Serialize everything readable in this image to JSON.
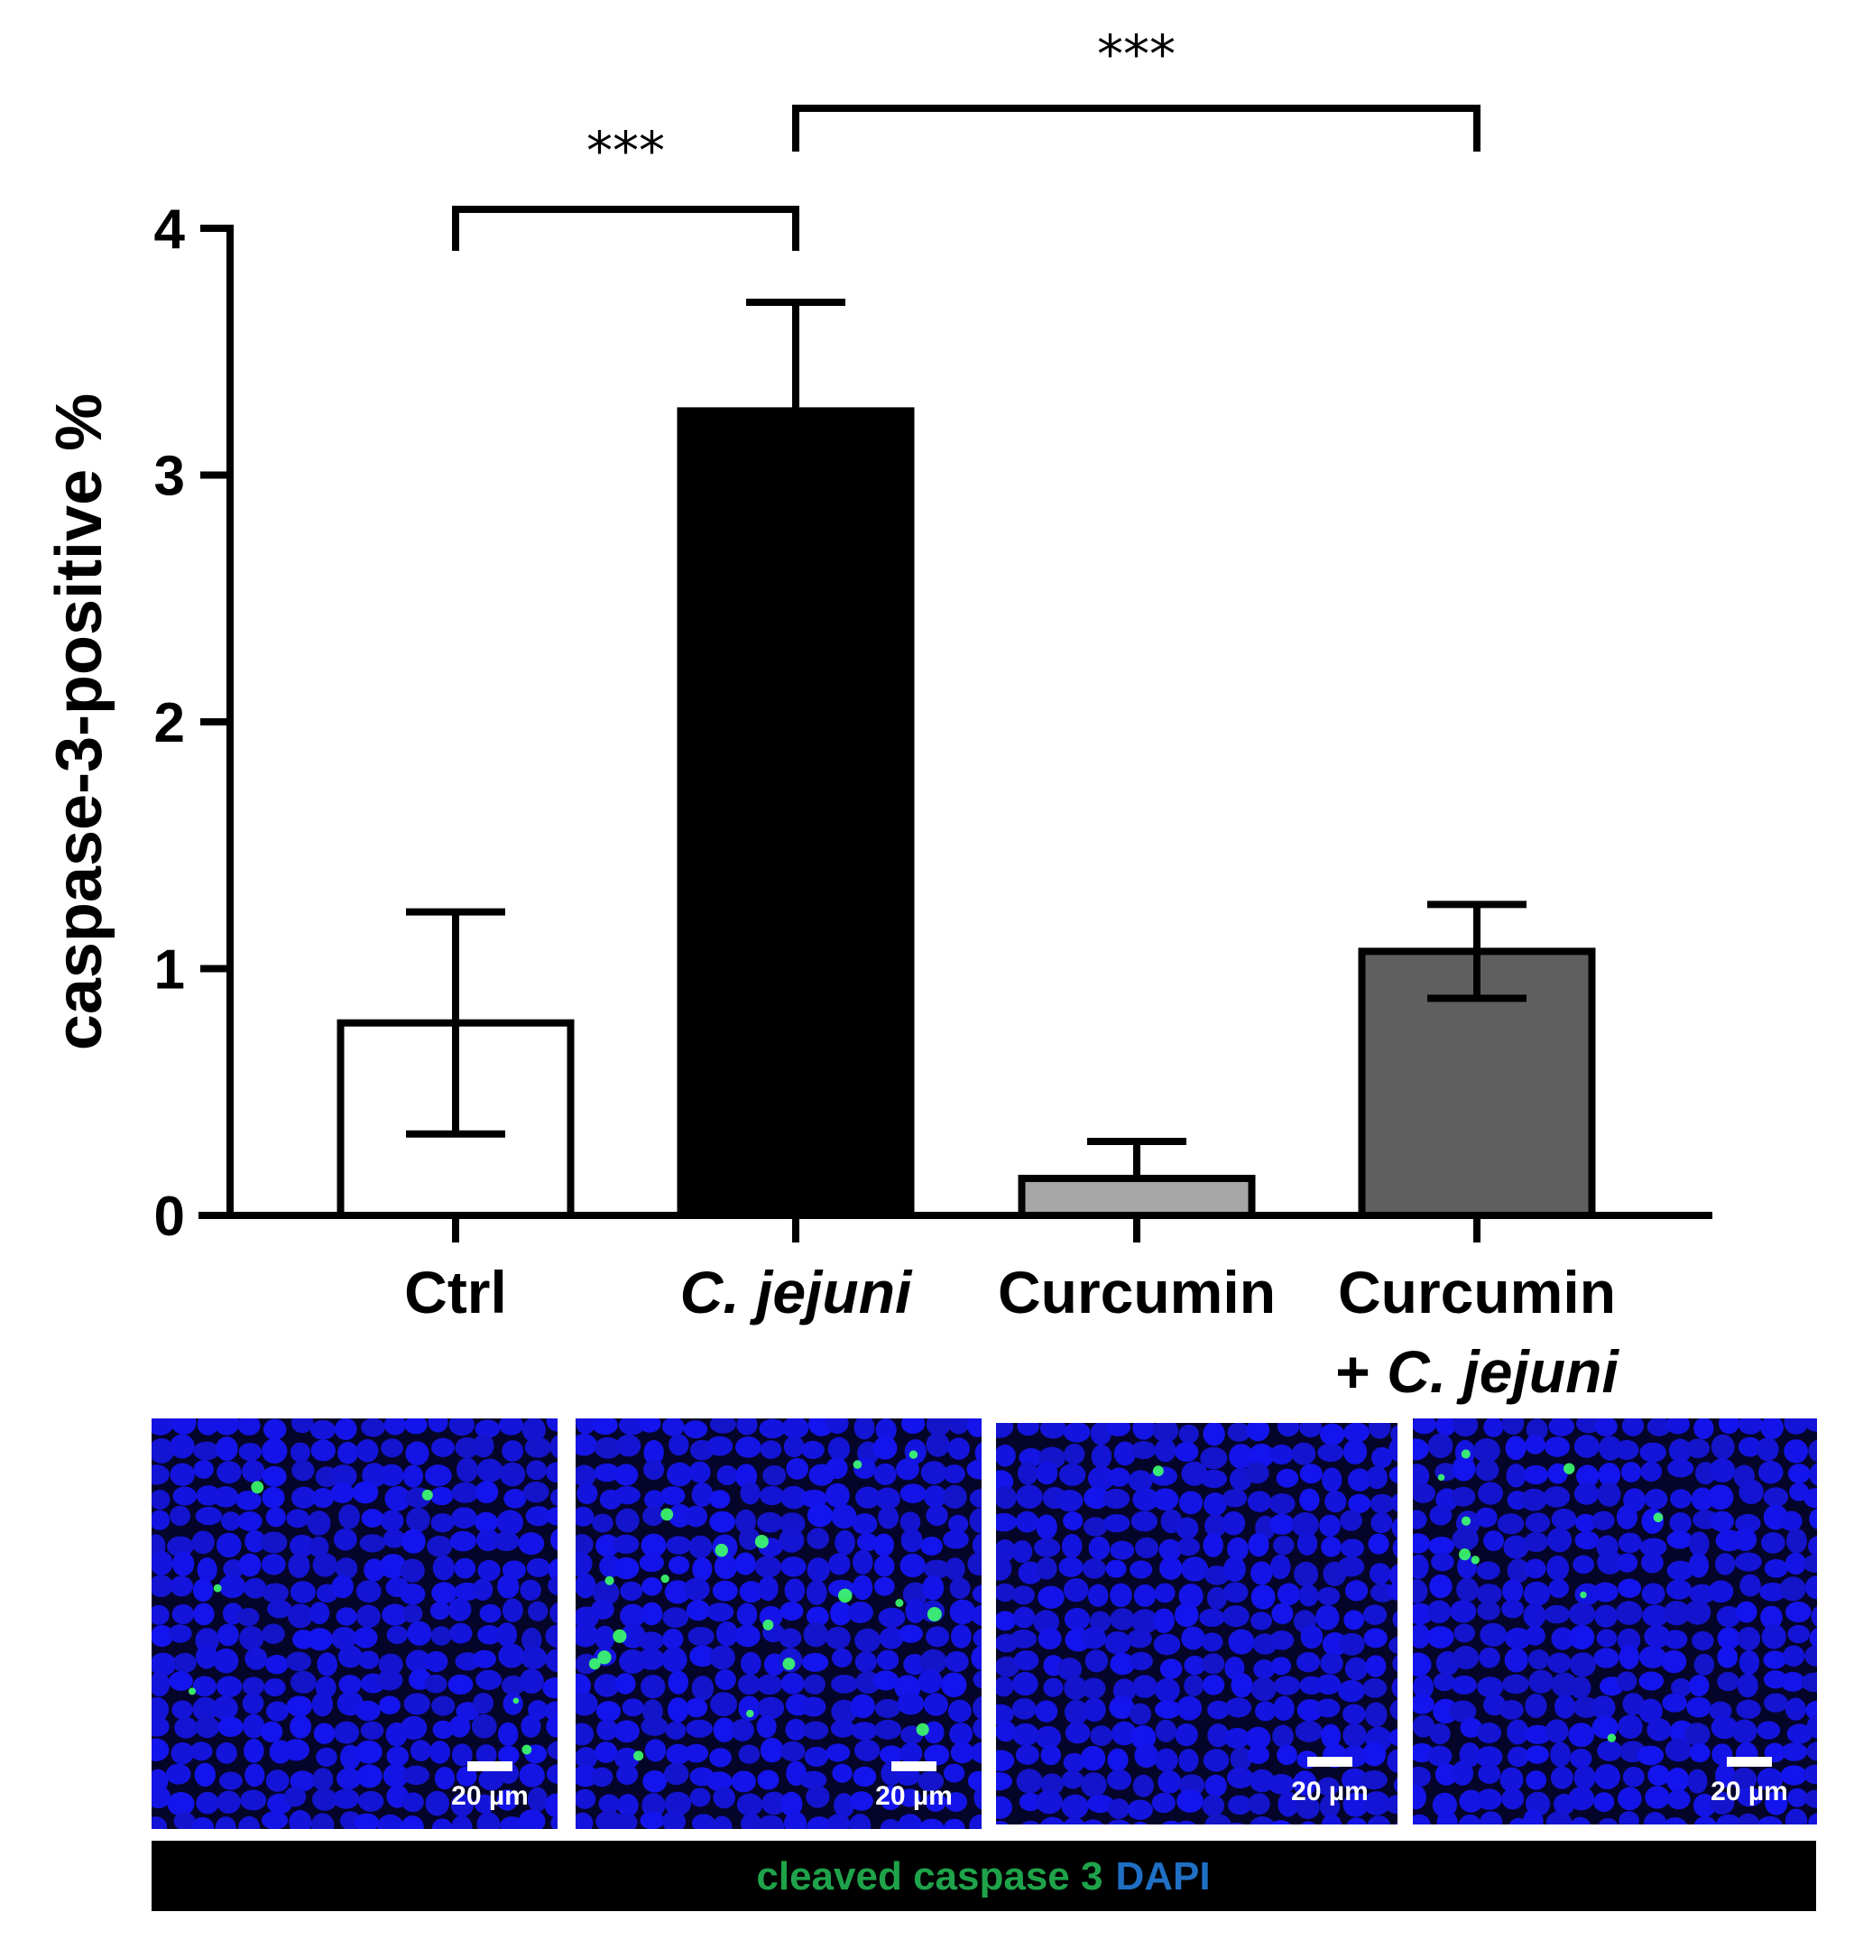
{
  "chart_data": {
    "type": "bar",
    "ylabel": "caspase-3-positive %",
    "ylim": [
      0,
      4
    ],
    "yticks": [
      "0",
      "1",
      "2",
      "3",
      "4"
    ],
    "categories": [
      {
        "lines": [
          {
            "text": "Ctrl",
            "italic": false
          }
        ]
      },
      {
        "lines": [
          {
            "text": "C. jejuni",
            "italic": true
          }
        ]
      },
      {
        "lines": [
          {
            "text": "Curcumin",
            "italic": false
          }
        ]
      },
      {
        "lines": [
          {
            "text": "Curcumin",
            "italic": false
          },
          {
            "prefix": "+ ",
            "text": "C. jejuni",
            "italic": true
          }
        ]
      }
    ],
    "values": [
      0.78,
      3.26,
      0.15,
      1.07
    ],
    "error_bars": [
      {
        "low": 0.33,
        "high": 1.23
      },
      {
        "low": 3.26,
        "high": 3.7
      },
      {
        "low": 0.15,
        "high": 0.3
      },
      {
        "low": 0.88,
        "high": 1.26
      }
    ],
    "bar_colors": [
      "#ffffff",
      "#000000",
      "#a6a6a6",
      "#5f5f5f"
    ],
    "significance": [
      {
        "from": 0,
        "to": 1,
        "label": "***"
      },
      {
        "from": 1,
        "to": 3,
        "label": "***"
      }
    ],
    "grid": false,
    "legend": "none"
  },
  "micrographs": {
    "panels": [
      {
        "scale_bar": "20 µm",
        "green_dots": 6
      },
      {
        "scale_bar": "20 µm",
        "green_dots": 18
      },
      {
        "scale_bar": "20 µm",
        "green_dots": 1
      },
      {
        "scale_bar": "20 µm",
        "green_dots": 9
      }
    ],
    "stain_caption": {
      "caspase_text": "cleaved caspase 3",
      "caspase_color": "#1fa34a",
      "dapi_text": "DAPI",
      "dapi_color": "#1f6fc4"
    },
    "colors": {
      "nucleus": "#1414e6",
      "background": "#05052a",
      "signal": "#3dff6a"
    }
  }
}
